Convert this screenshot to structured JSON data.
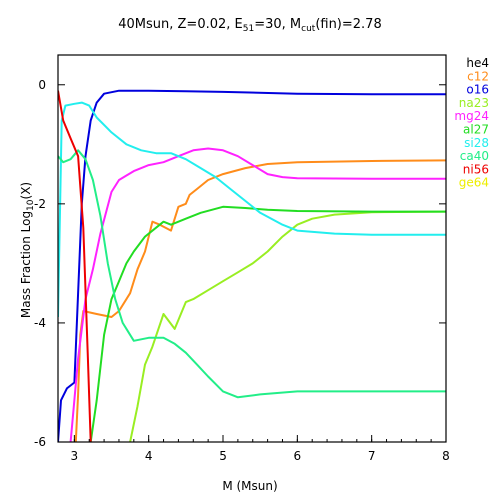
{
  "chart_data": {
    "type": "line",
    "title": {
      "part1": "40Msun, Z=0.02, E",
      "sub1": "51",
      "part2": "=30, M",
      "sub2": "cut",
      "part3": "(fin)=2.78"
    },
    "xlabel": "M (Msun)",
    "ylabel": {
      "part1": "Mass Fraction Log",
      "sub": "10",
      "part2": "(X)"
    },
    "xlim": [
      2.78,
      8
    ],
    "ylim": [
      -6,
      0.5
    ],
    "x_ticks": [
      3,
      4,
      5,
      6,
      7,
      8
    ],
    "y_ticks": [
      0,
      -2,
      -4,
      -6
    ],
    "grid": false,
    "legend_position": "right",
    "series": [
      {
        "name": "he4",
        "color": "#000000",
        "points": []
      },
      {
        "name": "c12",
        "color": "#ff8c1a",
        "points": [
          [
            3.02,
            -6.0
          ],
          [
            3.05,
            -5.2
          ],
          [
            3.08,
            -4.2
          ],
          [
            3.12,
            -3.8
          ],
          [
            3.3,
            -3.85
          ],
          [
            3.5,
            -3.9
          ],
          [
            3.6,
            -3.8
          ],
          [
            3.75,
            -3.5
          ],
          [
            3.85,
            -3.1
          ],
          [
            3.95,
            -2.8
          ],
          [
            4.05,
            -2.3
          ],
          [
            4.15,
            -2.35
          ],
          [
            4.3,
            -2.45
          ],
          [
            4.4,
            -2.05
          ],
          [
            4.5,
            -2.0
          ],
          [
            4.55,
            -1.85
          ],
          [
            4.65,
            -1.75
          ],
          [
            4.8,
            -1.6
          ],
          [
            5.0,
            -1.5
          ],
          [
            5.3,
            -1.4
          ],
          [
            5.6,
            -1.33
          ],
          [
            6.0,
            -1.3
          ],
          [
            7.0,
            -1.28
          ],
          [
            8.0,
            -1.27
          ]
        ]
      },
      {
        "name": "o16",
        "color": "#0000dd",
        "points": [
          [
            2.78,
            -6.0
          ],
          [
            2.82,
            -5.3
          ],
          [
            2.9,
            -5.1
          ],
          [
            3.0,
            -5.0
          ],
          [
            3.05,
            -3.5
          ],
          [
            3.1,
            -2.0
          ],
          [
            3.15,
            -1.2
          ],
          [
            3.22,
            -0.6
          ],
          [
            3.3,
            -0.3
          ],
          [
            3.4,
            -0.15
          ],
          [
            3.6,
            -0.1
          ],
          [
            4.0,
            -0.1
          ],
          [
            4.5,
            -0.11
          ],
          [
            5.0,
            -0.12
          ],
          [
            6.0,
            -0.15
          ],
          [
            7.0,
            -0.16
          ],
          [
            8.0,
            -0.16
          ]
        ]
      },
      {
        "name": "na23",
        "color": "#99ee22",
        "points": [
          [
            3.75,
            -6.0
          ],
          [
            3.85,
            -5.4
          ],
          [
            3.95,
            -4.7
          ],
          [
            4.05,
            -4.4
          ],
          [
            4.2,
            -3.85
          ],
          [
            4.35,
            -4.1
          ],
          [
            4.5,
            -3.65
          ],
          [
            4.6,
            -3.6
          ],
          [
            4.8,
            -3.45
          ],
          [
            5.0,
            -3.3
          ],
          [
            5.2,
            -3.15
          ],
          [
            5.4,
            -3.0
          ],
          [
            5.6,
            -2.8
          ],
          [
            5.8,
            -2.55
          ],
          [
            6.0,
            -2.35
          ],
          [
            6.2,
            -2.25
          ],
          [
            6.5,
            -2.18
          ],
          [
            7.0,
            -2.14
          ],
          [
            8.0,
            -2.13
          ]
        ]
      },
      {
        "name": "mg24",
        "color": "#ff22ff",
        "points": [
          [
            2.95,
            -6.0
          ],
          [
            3.05,
            -4.6
          ],
          [
            3.15,
            -3.6
          ],
          [
            3.25,
            -3.1
          ],
          [
            3.35,
            -2.5
          ],
          [
            3.5,
            -1.8
          ],
          [
            3.6,
            -1.6
          ],
          [
            3.8,
            -1.45
          ],
          [
            4.0,
            -1.35
          ],
          [
            4.2,
            -1.3
          ],
          [
            4.4,
            -1.2
          ],
          [
            4.6,
            -1.1
          ],
          [
            4.8,
            -1.07
          ],
          [
            5.0,
            -1.1
          ],
          [
            5.2,
            -1.2
          ],
          [
            5.4,
            -1.35
          ],
          [
            5.6,
            -1.5
          ],
          [
            5.8,
            -1.55
          ],
          [
            6.0,
            -1.57
          ],
          [
            7.0,
            -1.58
          ],
          [
            8.0,
            -1.58
          ]
        ]
      },
      {
        "name": "al27",
        "color": "#22dd22",
        "points": [
          [
            3.22,
            -6.0
          ],
          [
            3.3,
            -5.3
          ],
          [
            3.4,
            -4.2
          ],
          [
            3.5,
            -3.6
          ],
          [
            3.6,
            -3.3
          ],
          [
            3.7,
            -3.0
          ],
          [
            3.8,
            -2.8
          ],
          [
            3.95,
            -2.55
          ],
          [
            4.1,
            -2.4
          ],
          [
            4.2,
            -2.3
          ],
          [
            4.3,
            -2.35
          ],
          [
            4.4,
            -2.3
          ],
          [
            4.5,
            -2.25
          ],
          [
            4.7,
            -2.15
          ],
          [
            5.0,
            -2.05
          ],
          [
            5.3,
            -2.07
          ],
          [
            5.6,
            -2.1
          ],
          [
            6.0,
            -2.12
          ],
          [
            7.0,
            -2.13
          ],
          [
            8.0,
            -2.13
          ]
        ]
      },
      {
        "name": "si28",
        "color": "#22eeee",
        "points": [
          [
            2.78,
            -3.9
          ],
          [
            2.83,
            -0.6
          ],
          [
            2.88,
            -0.35
          ],
          [
            3.0,
            -0.32
          ],
          [
            3.1,
            -0.3
          ],
          [
            3.2,
            -0.35
          ],
          [
            3.3,
            -0.55
          ],
          [
            3.5,
            -0.8
          ],
          [
            3.7,
            -1.0
          ],
          [
            3.9,
            -1.1
          ],
          [
            4.1,
            -1.15
          ],
          [
            4.3,
            -1.15
          ],
          [
            4.5,
            -1.25
          ],
          [
            4.7,
            -1.4
          ],
          [
            4.9,
            -1.55
          ],
          [
            5.1,
            -1.75
          ],
          [
            5.3,
            -1.95
          ],
          [
            5.5,
            -2.15
          ],
          [
            5.8,
            -2.35
          ],
          [
            6.0,
            -2.45
          ],
          [
            6.5,
            -2.5
          ],
          [
            7.0,
            -2.52
          ],
          [
            8.0,
            -2.52
          ]
        ]
      },
      {
        "name": "ca40",
        "color": "#22ee88",
        "points": [
          [
            2.78,
            -1.2
          ],
          [
            2.85,
            -1.3
          ],
          [
            2.95,
            -1.25
          ],
          [
            3.05,
            -1.1
          ],
          [
            3.15,
            -1.25
          ],
          [
            3.25,
            -1.6
          ],
          [
            3.35,
            -2.2
          ],
          [
            3.45,
            -3.0
          ],
          [
            3.55,
            -3.6
          ],
          [
            3.65,
            -4.0
          ],
          [
            3.8,
            -4.3
          ],
          [
            4.0,
            -4.25
          ],
          [
            4.2,
            -4.25
          ],
          [
            4.35,
            -4.35
          ],
          [
            4.5,
            -4.5
          ],
          [
            4.65,
            -4.7
          ],
          [
            4.8,
            -4.9
          ],
          [
            5.0,
            -5.15
          ],
          [
            5.2,
            -5.25
          ],
          [
            5.5,
            -5.2
          ],
          [
            6.0,
            -5.15
          ],
          [
            7.0,
            -5.15
          ],
          [
            8.0,
            -5.15
          ]
        ]
      },
      {
        "name": "ni56",
        "color": "#ee0000",
        "points": [
          [
            2.78,
            -0.1
          ],
          [
            2.85,
            -0.6
          ],
          [
            2.95,
            -0.9
          ],
          [
            3.05,
            -1.2
          ],
          [
            3.12,
            -2.4
          ],
          [
            3.18,
            -4.5
          ],
          [
            3.22,
            -6.0
          ]
        ]
      },
      {
        "name": "ge64",
        "color": "#eeee00",
        "points": []
      }
    ]
  }
}
